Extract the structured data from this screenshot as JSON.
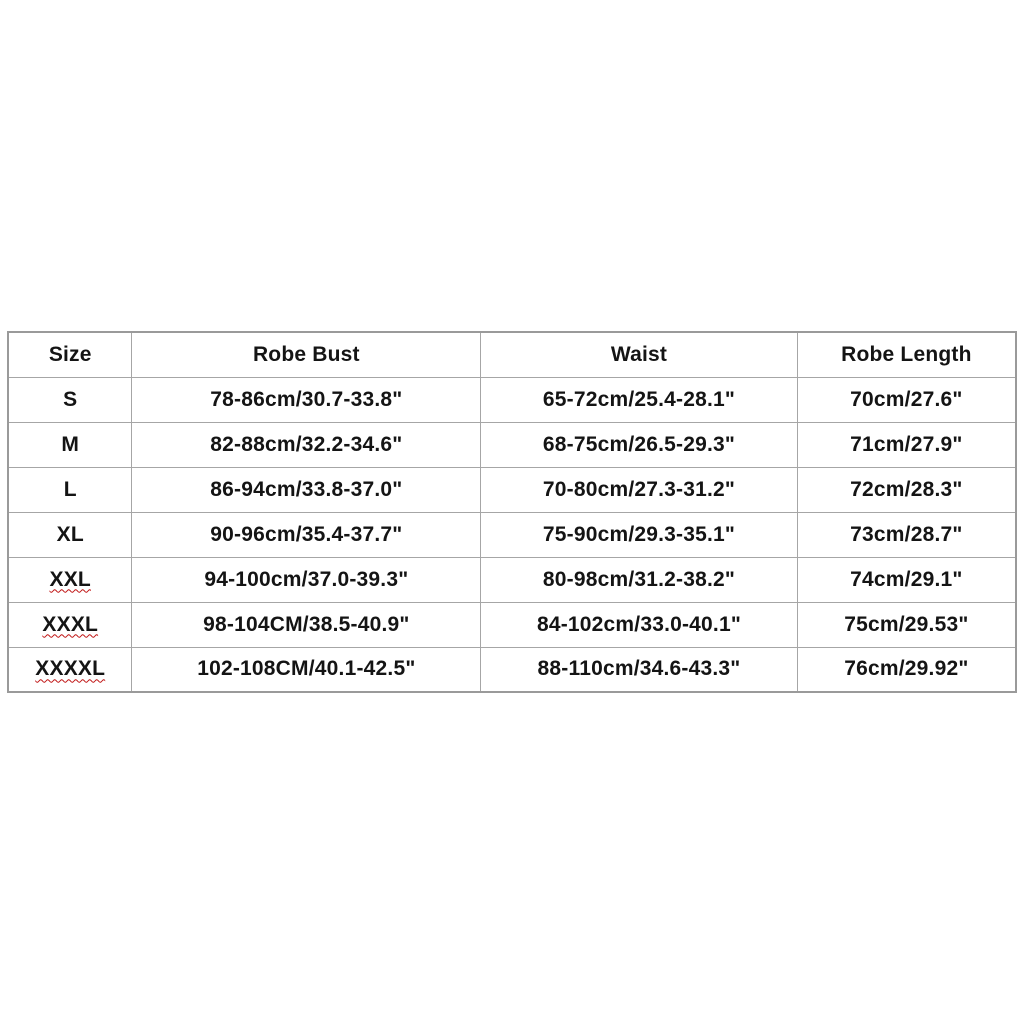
{
  "chart_data": {
    "type": "table",
    "columns": [
      "Size",
      "Robe Bust",
      "Waist",
      "Robe Length"
    ],
    "rows": [
      {
        "cells": [
          "S",
          "78-86cm/30.7-33.8\"",
          "65-72cm/25.4-28.1\"",
          "70cm/27.6\""
        ],
        "spellcheck_underline": false
      },
      {
        "cells": [
          "M",
          "82-88cm/32.2-34.6\"",
          "68-75cm/26.5-29.3\"",
          "71cm/27.9\""
        ],
        "spellcheck_underline": false
      },
      {
        "cells": [
          "L",
          "86-94cm/33.8-37.0\"",
          "70-80cm/27.3-31.2\"",
          "72cm/28.3\""
        ],
        "spellcheck_underline": false
      },
      {
        "cells": [
          "XL",
          "90-96cm/35.4-37.7\"",
          "75-90cm/29.3-35.1\"",
          "73cm/28.7\""
        ],
        "spellcheck_underline": false
      },
      {
        "cells": [
          "XXL",
          "94-100cm/37.0-39.3\"",
          "80-98cm/31.2-38.2\"",
          "74cm/29.1\""
        ],
        "spellcheck_underline": true
      },
      {
        "cells": [
          "XXXL",
          "98-104CM/38.5-40.9\"",
          "84-102cm/33.0-40.1\"",
          "75cm/29.53\""
        ],
        "spellcheck_underline": true
      },
      {
        "cells": [
          "XXXXL",
          "102-108CM/40.1-42.5\"",
          "88-110cm/34.6-43.3\"",
          "76cm/29.92\""
        ],
        "spellcheck_underline": true
      }
    ],
    "layout_hints": {
      "grid": "on",
      "all_text_bold": true,
      "text_alignment": "center"
    },
    "colors": {
      "background": "#ffffff",
      "grid_border": "#a6a6a6",
      "outer_border": "#9a9a9a",
      "text": "#141414",
      "spellcheck_wavy_underline": "#c01414"
    }
  }
}
